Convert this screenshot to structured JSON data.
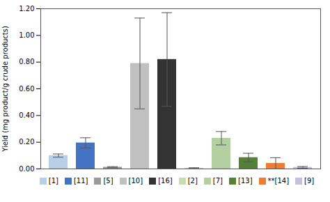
{
  "chart_data": {
    "type": "bar",
    "categories": [
      "[1]",
      "[11]",
      "[5]",
      "[10]",
      "[16]",
      "[2]",
      "[7]",
      "[13]",
      "**[14]",
      "[9]"
    ],
    "values": [
      0.1,
      0.195,
      0.013,
      0.79,
      0.82,
      0.006,
      0.23,
      0.085,
      0.042,
      0.012
    ],
    "errors": [
      0.012,
      0.038,
      0.004,
      0.34,
      0.35,
      0.003,
      0.05,
      0.032,
      0.042,
      0.006
    ],
    "colors": [
      "#b8cfe8",
      "#4472c4",
      "#999999",
      "#c0c0c0",
      "#333333",
      "#c6ddb4",
      "#b5d0a0",
      "#538135",
      "#ed7d31",
      "#c5c0dc"
    ],
    "ylabel": "Yield (mg product/g crude products)",
    "ylim": [
      0,
      1.2
    ],
    "yticks": [
      {
        "value": 0,
        "label": "0.00"
      },
      {
        "value": 0.2,
        "label": "0.20"
      },
      {
        "value": 0.4,
        "label": "0.40"
      },
      {
        "value": 0.6,
        "label": "0.60"
      },
      {
        "value": 0.8,
        "label": "0.80"
      },
      {
        "value": 1.0,
        "label": "1.00"
      },
      {
        "value": 1.2,
        "label": "1.20"
      }
    ],
    "grid": false,
    "legend": "bottom",
    "tick_labels": "y"
  }
}
